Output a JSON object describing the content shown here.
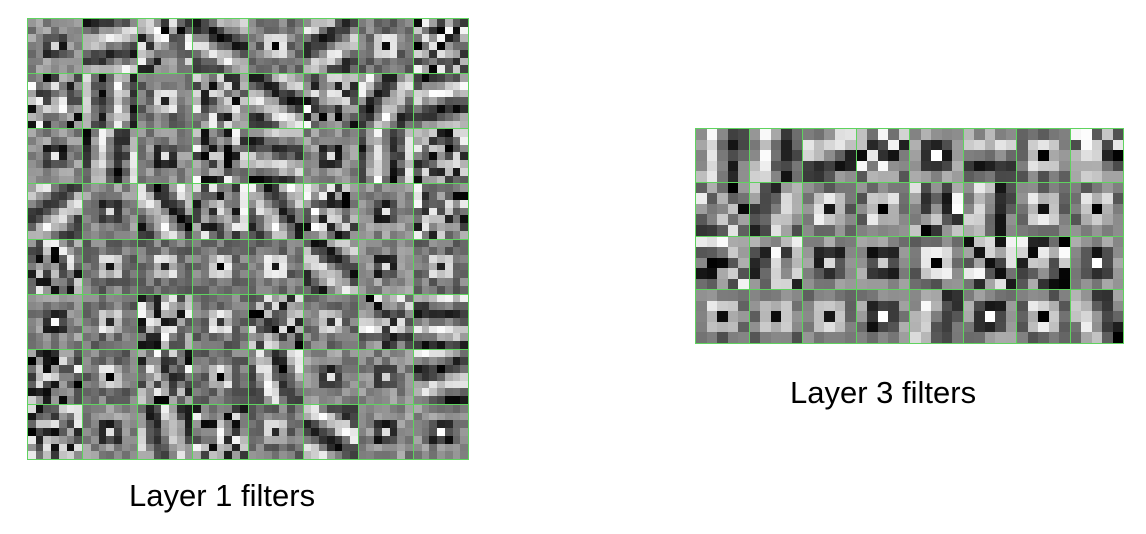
{
  "figures": [
    {
      "id": "layer1",
      "caption": "Layer 1 filters",
      "rows": 8,
      "cols": 8,
      "kernel": 7,
      "border_color": "#5fd35f"
    },
    {
      "id": "layer3",
      "caption": "Layer 3 filters",
      "rows": 4,
      "cols": 8,
      "kernel": 5,
      "border_color": "#5fd35f"
    }
  ]
}
